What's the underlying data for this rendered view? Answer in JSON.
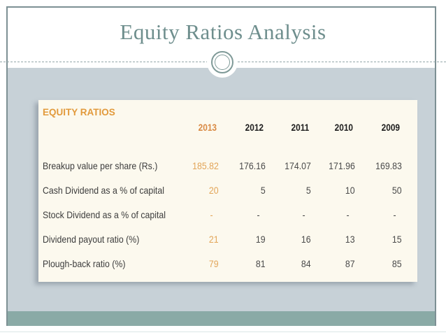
{
  "slide": {
    "title": "Equity Ratios Analysis",
    "table": {
      "title": "EQUITY RATIOS",
      "columns": [
        "2013",
        "2012",
        "2011",
        "2010",
        "2009"
      ],
      "rows": [
        {
          "label": "Breakup value per share (Rs.)",
          "values": [
            "185.82",
            "176.16",
            "174.07",
            "171.96",
            "169.83"
          ]
        },
        {
          "label": "Cash Dividend as a % of capital",
          "values": [
            "20",
            "5",
            "5",
            "10",
            "50"
          ]
        },
        {
          "label": "Stock Dividend as a % of capital",
          "values": [
            "-",
            "-",
            "-",
            "-",
            "-"
          ]
        },
        {
          "label": "Dividend payout ratio (%)",
          "values": [
            "21",
            "19",
            "16",
            "13",
            "15"
          ]
        },
        {
          "label": "Plough-back ratio (%)",
          "values": [
            "79",
            "81",
            "84",
            "87",
            "85"
          ]
        }
      ]
    },
    "colors": {
      "title_text": "#6e8e8d",
      "frame_border": "#7d9094",
      "gray_band": "#c7d1d7",
      "teal_band": "#8aaaa6",
      "table_background": "#fcf9ee",
      "table_title_orange": "#e29a3c",
      "highlight_year_header": "#d98a44",
      "highlight_year_values": "#e2a558",
      "year_header_text": "#1d1d1d",
      "value_text": "#4a4a4a"
    }
  }
}
